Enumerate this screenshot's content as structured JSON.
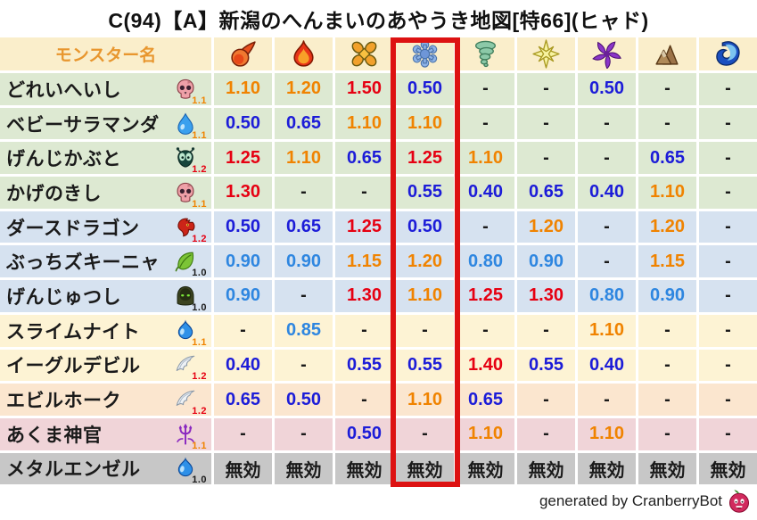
{
  "title": "C(94)【A】新潟のへんまいのあやうき地図[特66](ヒャド)",
  "header": {
    "monster_col": "モンスター名",
    "monster_col_color": "#e8962e",
    "bg": "#faeecb",
    "elements": [
      "fireball",
      "flame",
      "burst",
      "snowflake",
      "tornado",
      "star",
      "pinwheel",
      "mountain",
      "wave"
    ]
  },
  "highlight": {
    "element_index": 3,
    "element": "snowflake",
    "box_color": "#dd1212"
  },
  "palette": {
    "red": "#e60012",
    "orange": "#f08300",
    "lightblue": "#2e86e0",
    "blue": "#1c1cd8",
    "black": "#1a1a1a"
  },
  "rows": [
    {
      "name": "どれいへいし",
      "family_icon": "skull",
      "boost": "1.1",
      "bg": "#dde9d2",
      "values": [
        "1.10",
        "1.20",
        "1.50",
        "0.50",
        "-",
        "-",
        "0.50",
        "-",
        "-"
      ]
    },
    {
      "name": "ベビーサラマンダ",
      "family_icon": "drop",
      "boost": "1.1",
      "bg": "#dde9d2",
      "values": [
        "0.50",
        "0.65",
        "1.10",
        "1.10",
        "-",
        "-",
        "-",
        "-",
        "-"
      ]
    },
    {
      "name": "げんじかぶと",
      "family_icon": "bug",
      "boost": "1.2",
      "bg": "#dde9d2",
      "values": [
        "1.25",
        "1.10",
        "0.65",
        "1.25",
        "1.10",
        "-",
        "-",
        "0.65",
        "-"
      ]
    },
    {
      "name": "かげのきし",
      "family_icon": "skull",
      "boost": "1.1",
      "bg": "#dde9d2",
      "values": [
        "1.30",
        "-",
        "-",
        "0.55",
        "0.40",
        "0.65",
        "0.40",
        "1.10",
        "-"
      ]
    },
    {
      "name": "ダースドラゴン",
      "family_icon": "dragon",
      "boost": "1.2",
      "bg": "#d6e2f0",
      "values": [
        "0.50",
        "0.65",
        "1.25",
        "0.50",
        "-",
        "1.20",
        "-",
        "1.20",
        "-"
      ]
    },
    {
      "name": "ぶっちズキーニャ",
      "family_icon": "leaf",
      "boost": "1.0",
      "bg": "#d6e2f0",
      "values": [
        "0.90",
        "0.90",
        "1.15",
        "1.20",
        "0.80",
        "0.90",
        "-",
        "1.15",
        "-"
      ]
    },
    {
      "name": "げんじゅつし",
      "family_icon": "hood",
      "boost": "1.0",
      "bg": "#d6e2f0",
      "values": [
        "0.90",
        "-",
        "1.30",
        "1.10",
        "1.25",
        "1.30",
        "0.80",
        "0.90",
        "-"
      ]
    },
    {
      "name": "スライムナイト",
      "family_icon": "slime",
      "boost": "1.1",
      "bg": "#fdf3d4",
      "values": [
        "-",
        "0.85",
        "-",
        "-",
        "-",
        "-",
        "1.10",
        "-",
        "-"
      ]
    },
    {
      "name": "イーグルデビル",
      "family_icon": "wing",
      "boost": "1.2",
      "bg": "#fdf3d4",
      "values": [
        "0.40",
        "-",
        "0.55",
        "0.55",
        "1.40",
        "0.55",
        "0.40",
        "-",
        "-"
      ]
    },
    {
      "name": "エビルホーク",
      "family_icon": "wing",
      "boost": "1.2",
      "bg": "#fbe6cf",
      "values": [
        "0.65",
        "0.50",
        "-",
        "1.10",
        "0.65",
        "-",
        "-",
        "-",
        "-"
      ]
    },
    {
      "name": "あくま神官",
      "family_icon": "trident",
      "boost": "1.1",
      "bg": "#f0d4d8",
      "values": [
        "-",
        "-",
        "0.50",
        "-",
        "1.10",
        "-",
        "1.10",
        "-",
        "-"
      ]
    },
    {
      "name": "メタルエンゼル",
      "family_icon": "slime",
      "boost": "1.0",
      "bg": "#c7c7c7",
      "values": [
        "無効",
        "無効",
        "無効",
        "無効",
        "無効",
        "無効",
        "無効",
        "無効",
        "無効"
      ]
    }
  ],
  "footer": {
    "text": "generated by CranberryBot",
    "icon": "cranberry"
  }
}
